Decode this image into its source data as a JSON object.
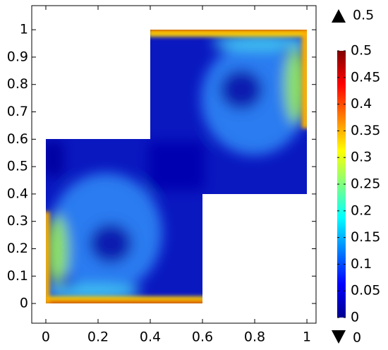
{
  "chart_data": {
    "type": "surface",
    "xlim": [
      -0.054,
      1.035
    ],
    "ylim": [
      -0.072,
      1.088
    ],
    "xticks": [
      0,
      0.2,
      0.4,
      0.6,
      0.8,
      1
    ],
    "yticks": [
      0,
      0.1,
      0.2,
      0.3,
      0.4,
      0.5,
      0.6,
      0.7,
      0.8,
      0.9,
      1
    ],
    "colormap": "jet",
    "clim": [
      0,
      0.5
    ],
    "cticks": [
      0,
      0.05,
      0.1,
      0.15,
      0.2,
      0.25,
      0.3,
      0.35,
      0.4,
      0.45,
      0.5
    ],
    "max": 0.5,
    "min": 0
  }
}
